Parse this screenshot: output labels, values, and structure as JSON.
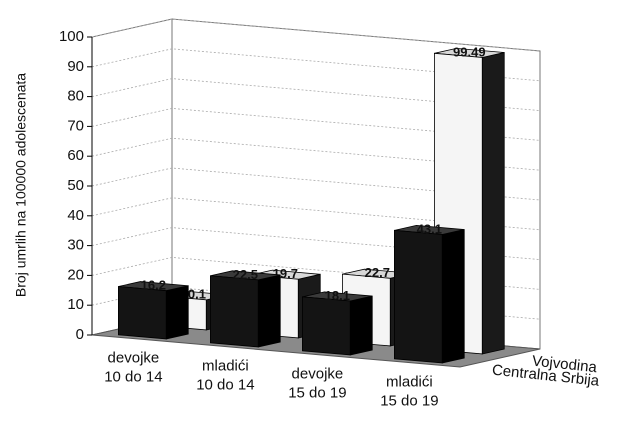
{
  "chart_data": {
    "type": "bar3d",
    "y_label": "Broj umrlih na 100000 adolescenata",
    "categories": [
      [
        "devojke",
        "10 do 14"
      ],
      [
        "mladići",
        "10 do 14"
      ],
      [
        "devojke",
        "15 do 19"
      ],
      [
        "mladići",
        "15 do 19"
      ]
    ],
    "series": [
      {
        "name": "Centralna Srbija",
        "color": "#141414",
        "values": [
          16.2,
          22.5,
          18.1,
          43.1
        ]
      },
      {
        "name": "Vojvodina",
        "color": "#f5f5f5",
        "values": [
          10.1,
          19.7,
          22.7,
          99.49
        ]
      }
    ],
    "ylim": [
      0,
      100
    ],
    "yticks": [
      0,
      10,
      20,
      30,
      40,
      50,
      60,
      70,
      80,
      90,
      100
    ],
    "grid": true
  }
}
